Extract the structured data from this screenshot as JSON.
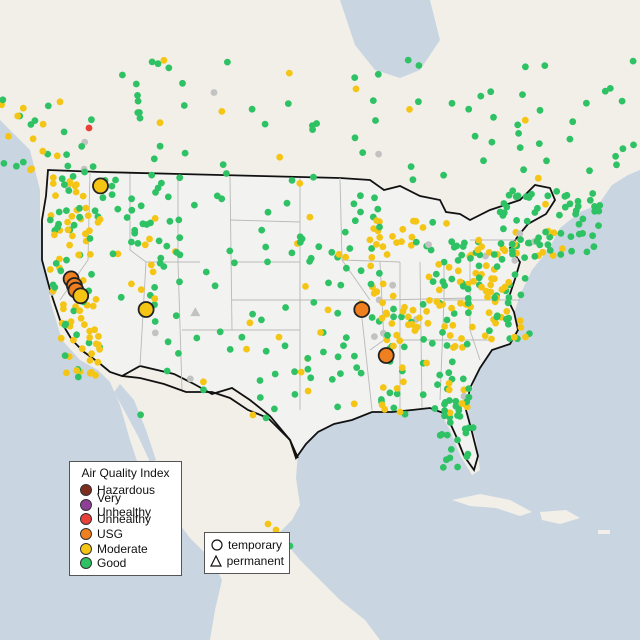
{
  "map": {
    "colors": {
      "water": "#c9d6e2",
      "land": "#f1efe8",
      "us_land": "#f2f2f0",
      "border": "#111111",
      "state_line": "#b9b9b9",
      "road": "#ececea"
    },
    "aqi_colors": {
      "hazardous": "#7e2d1e",
      "very_unhealthy": "#8f3f97",
      "unhealthy": "#e8413a",
      "usg": "#f07f1f",
      "moderate": "#f5c516",
      "good": "#2ec265",
      "no_data": "#c2c2c2"
    },
    "large_markers": [
      {
        "category": "moderate",
        "lat": 48.3,
        "lon": -116.6
      },
      {
        "category": "usg",
        "lat": 38.8,
        "lon": -121.5
      },
      {
        "category": "usg",
        "lat": 38.1,
        "lon": -121.2
      },
      {
        "category": "usg",
        "lat": 37.6,
        "lon": -121.1
      },
      {
        "category": "moderate",
        "lat": 37.0,
        "lon": -120.6
      },
      {
        "category": "moderate",
        "lat": 35.3,
        "lon": -112.6
      },
      {
        "category": "usg",
        "lat": 35.2,
        "lon": -85.3
      },
      {
        "category": "usg",
        "lat": 30.5,
        "lon": -81.7
      }
    ],
    "permanent_markers": [
      {
        "category": "no_data",
        "lat": 34.9,
        "lon": -106.4
      }
    ]
  },
  "legend": {
    "title": "Air Quality Index",
    "items": [
      {
        "label": "Hazardous",
        "color": "#7e2d1e"
      },
      {
        "label": "Very Unhealthy",
        "color": "#8f3f97"
      },
      {
        "label": "Unhealthy",
        "color": "#e8413a"
      },
      {
        "label": "USG",
        "color": "#f07f1f"
      },
      {
        "label": "Moderate",
        "color": "#f5c516"
      },
      {
        "label": "Good",
        "color": "#2ec265"
      }
    ],
    "shapes": [
      {
        "label": "temporary",
        "shape": "circle"
      },
      {
        "label": "permanent",
        "shape": "triangle"
      }
    ]
  }
}
